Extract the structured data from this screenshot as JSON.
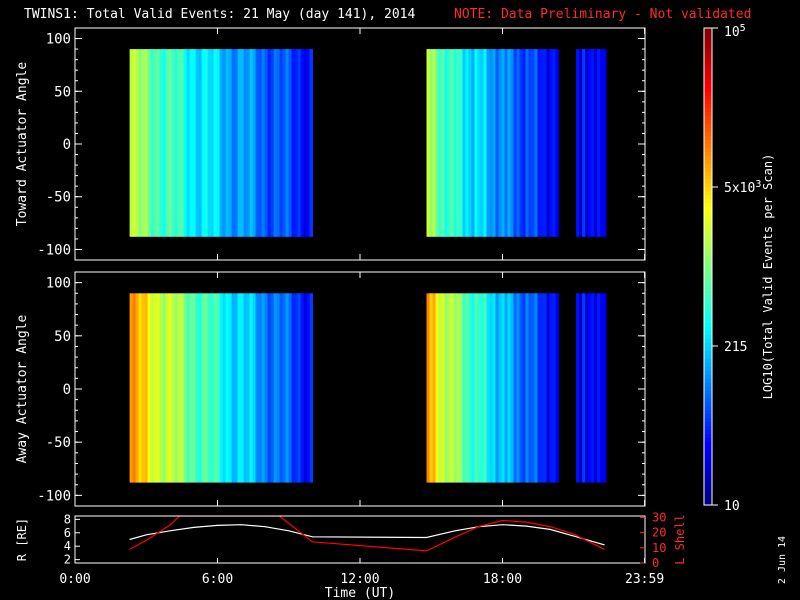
{
  "title": "TWINS1: Total Valid Events: 21 May (day 141), 2014",
  "note": "NOTE: Data Preliminary - Not validated",
  "date_stamp": "2 Jun 14",
  "colorbar": {
    "label": "LOG10(Total Valid Events per Scan)",
    "tick_labels": [
      "10",
      "215",
      "5x10^3",
      "10^5"
    ]
  },
  "chart_data": [
    {
      "type": "heatmap",
      "ylabel": "Toward Actuator Angle",
      "ylim": [
        -110,
        110
      ],
      "yticks": [
        "100",
        "50",
        "0",
        "-50",
        "-100"
      ],
      "angle_range": [
        -88,
        90
      ],
      "data_blocks_hours": [
        [
          2.3,
          10.0
        ],
        [
          14.8,
          20.3
        ],
        [
          21.1,
          22.3
        ]
      ],
      "color_scale": "log",
      "color_range": [
        10,
        100000
      ]
    },
    {
      "type": "heatmap",
      "ylabel": "Away Actuator Angle",
      "ylim": [
        -110,
        110
      ],
      "yticks": [
        "100",
        "50",
        "0",
        "-50",
        "-100"
      ],
      "angle_range": [
        -88,
        90
      ],
      "data_blocks_hours": [
        [
          2.3,
          10.0
        ],
        [
          14.8,
          20.3
        ],
        [
          21.1,
          22.3
        ]
      ],
      "color_scale": "log",
      "color_range": [
        10,
        100000
      ]
    },
    {
      "type": "line",
      "x_unit": "hours UT",
      "y_left_label": "R [RE]",
      "y_left_ticks": [
        "8",
        "6",
        "4",
        "2"
      ],
      "y_left_lim": [
        1.5,
        8.5
      ],
      "y_right_label": "L Shell",
      "y_right_ticks": [
        "30",
        "20",
        "10",
        "0"
      ],
      "y_right_lim": [
        0,
        31
      ],
      "series": [
        {
          "axis": "left",
          "color": "#ffffff",
          "x": [
            2.3,
            3.0,
            4.0,
            5.0,
            6.0,
            7.0,
            8.0,
            9.0,
            10.0,
            14.8,
            16.0,
            17.0,
            18.0,
            19.0,
            20.0,
            21.0,
            22.3
          ],
          "y": [
            5.0,
            5.7,
            6.3,
            6.8,
            7.1,
            7.2,
            6.9,
            6.3,
            5.4,
            5.3,
            6.3,
            6.9,
            7.2,
            7.0,
            6.5,
            5.5,
            4.2
          ]
        },
        {
          "axis": "right",
          "color": "#ff0000",
          "x": [
            2.3,
            3.0,
            4.0,
            4.4,
            8.6,
            10.0,
            14.8,
            16.0,
            17.0,
            18.0,
            19.0,
            20.0,
            21.0,
            22.3
          ],
          "y": [
            9.0,
            15.0,
            25.0,
            31.0,
            31.0,
            14.0,
            8.0,
            17.0,
            24.0,
            28.0,
            27.0,
            24.0,
            19.0,
            9.0
          ]
        }
      ]
    }
  ],
  "time_axis": {
    "label": "Time (UT)",
    "ticks": [
      {
        "hour": 0,
        "label": "0:00"
      },
      {
        "hour": 6,
        "label": "6:00"
      },
      {
        "hour": 12,
        "label": "12:00"
      },
      {
        "hour": 18,
        "label": "18:00"
      },
      {
        "hour": 23.983,
        "label": "23:59"
      }
    ]
  }
}
